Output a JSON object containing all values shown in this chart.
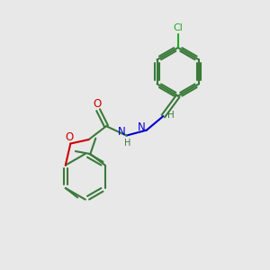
{
  "bg_color": "#e8e8e8",
  "bond_color": "#3a7a3a",
  "nitrogen_color": "#0000cc",
  "oxygen_color": "#cc0000",
  "chlorine_color": "#22aa22",
  "lw": 1.5,
  "figsize": [
    3.0,
    3.0
  ],
  "dpi": 100,
  "xlim": [
    0,
    10
  ],
  "ylim": [
    0,
    10
  ]
}
